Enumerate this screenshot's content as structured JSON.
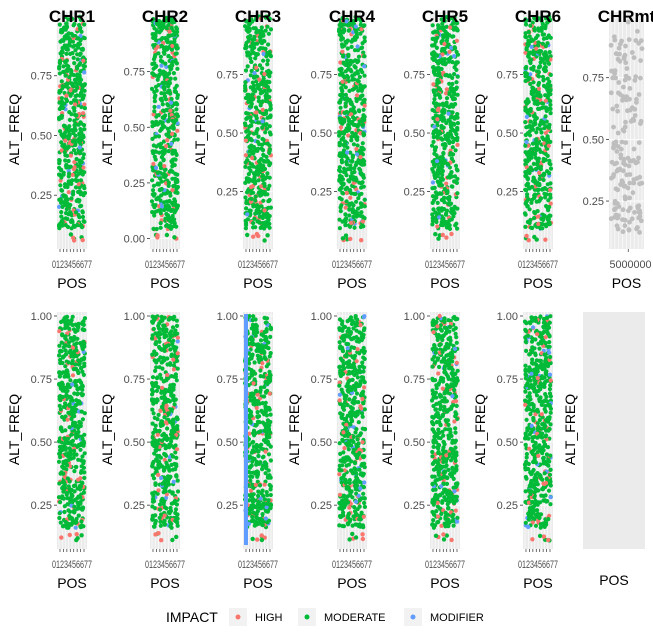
{
  "chart_data": {
    "type": "scatter",
    "ylabel": "ALT_FREQ",
    "xlabel": "POS",
    "legend": {
      "title": "IMPACT",
      "placement": "bottom",
      "entries": [
        {
          "name": "HIGH",
          "color": "#f8766d"
        },
        {
          "name": "MODERATE",
          "color": "#00ba38"
        },
        {
          "name": "MODIFIER",
          "color": "#619cff"
        }
      ]
    },
    "rows": [
      {
        "panels": [
          {
            "title": "CHR1",
            "ylim": [
              0.05,
              1.0
            ],
            "yticks": [
              "0.25",
              "0.50",
              "0.75"
            ],
            "xtick_text": "0123456677",
            "points": "dense",
            "modifier_band": false
          },
          {
            "title": "CHR2",
            "ylim": [
              -0.02,
              1.0
            ],
            "yticks": [
              "0.00",
              "0.25",
              "0.50",
              "0.75"
            ],
            "xtick_text": "0123456677",
            "points": "dense",
            "modifier_band": false
          },
          {
            "title": "CHR3",
            "ylim": [
              0.03,
              1.0
            ],
            "yticks": [
              "0.25",
              "0.50",
              "0.75"
            ],
            "xtick_text": "0123456677",
            "points": "dense",
            "modifier_band": false
          },
          {
            "title": "CHR4",
            "ylim": [
              0.03,
              1.0
            ],
            "yticks": [
              "0.25",
              "0.50",
              "0.75"
            ],
            "xtick_text": "0123456677",
            "points": "dense",
            "modifier_band": false
          },
          {
            "title": "CHR5",
            "ylim": [
              0.03,
              1.0
            ],
            "yticks": [
              "0.25",
              "0.50",
              "0.75"
            ],
            "xtick_text": "0123456677",
            "points": "dense",
            "modifier_band": false
          },
          {
            "title": "CHR6",
            "ylim": [
              0.03,
              1.0
            ],
            "yticks": [
              "0.25",
              "0.50",
              "0.75"
            ],
            "xtick_text": "0123456677",
            "points": "dense",
            "modifier_band": false
          },
          {
            "title": "CHRmt",
            "ylim": [
              0.08,
              1.0
            ],
            "yticks": [
              "0.25",
              "0.50",
              "0.75"
            ],
            "xtick_text": "5000000",
            "points": "sparse-grey",
            "modifier_band": false
          }
        ]
      },
      {
        "panels": [
          {
            "title": "",
            "ylim": [
              0.1,
              1.0
            ],
            "yticks": [
              "0.25",
              "0.50",
              "0.75",
              "1.00"
            ],
            "xtick_text": "0123456677",
            "points": "dense",
            "modifier_band": false
          },
          {
            "title": "",
            "ylim": [
              0.1,
              1.0
            ],
            "yticks": [
              "0.25",
              "0.50",
              "0.75",
              "1.00"
            ],
            "xtick_text": "0123456677",
            "points": "dense",
            "modifier_band": false
          },
          {
            "title": "",
            "ylim": [
              0.1,
              1.0
            ],
            "yticks": [
              "0.25",
              "0.50",
              "0.75",
              "1.00"
            ],
            "xtick_text": "0123456677",
            "points": "dense",
            "modifier_band": true
          },
          {
            "title": "",
            "ylim": [
              0.1,
              1.0
            ],
            "yticks": [
              "0.25",
              "0.50",
              "0.75",
              "1.00"
            ],
            "xtick_text": "0123456677",
            "points": "dense",
            "modifier_band": false
          },
          {
            "title": "",
            "ylim": [
              0.1,
              1.0
            ],
            "yticks": [
              "0.25",
              "0.50",
              "0.75",
              "1.00"
            ],
            "xtick_text": "0123456677",
            "points": "dense",
            "modifier_band": false
          },
          {
            "title": "",
            "ylim": [
              0.1,
              1.0
            ],
            "yticks": [
              "0.25",
              "0.50",
              "0.75",
              "1.00"
            ],
            "xtick_text": "0123456677",
            "points": "dense",
            "modifier_band": false
          },
          {
            "title": "",
            "ylim": [
              0.1,
              1.0
            ],
            "yticks": [],
            "xtick_text": "",
            "points": "none",
            "modifier_band": false
          }
        ]
      }
    ]
  }
}
